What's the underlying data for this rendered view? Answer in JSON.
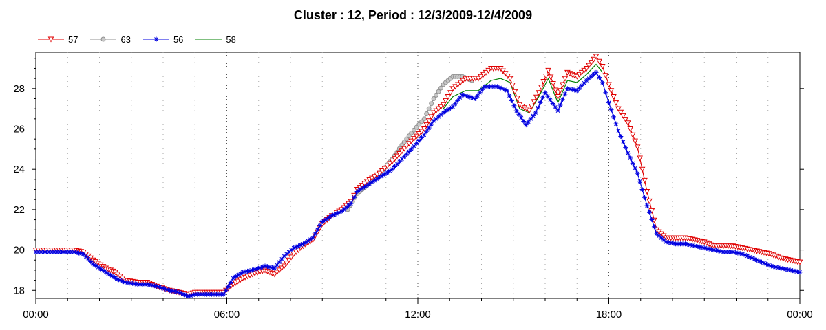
{
  "chart_data": {
    "type": "line",
    "title": "Cluster : 12, Period : 12/3/2009-12/4/2009",
    "xlabel": "",
    "ylabel": "",
    "xlim": [
      0,
      24
    ],
    "ylim": [
      17.6,
      29.8
    ],
    "x_ticks": [
      {
        "value": 0,
        "label": "00:00"
      },
      {
        "value": 6,
        "label": "06:00"
      },
      {
        "value": 12,
        "label": "12:00"
      },
      {
        "value": 18,
        "label": "18:00"
      },
      {
        "value": 24,
        "label": "00:00"
      }
    ],
    "y_ticks": [
      18,
      20,
      22,
      24,
      26,
      28
    ],
    "grid": true,
    "legend_position": "top-left",
    "series": [
      {
        "name": "57",
        "color": "#e00000",
        "marker": "triangle-down",
        "markerEvery": 2,
        "points": [
          [
            0,
            20.0
          ],
          [
            0.5,
            20.0
          ],
          [
            1.2,
            20.0
          ],
          [
            1.5,
            19.9
          ],
          [
            1.8,
            19.5
          ],
          [
            2.2,
            19.1
          ],
          [
            2.5,
            18.9
          ],
          [
            2.8,
            18.5
          ],
          [
            3.2,
            18.4
          ],
          [
            3.5,
            18.4
          ],
          [
            3.8,
            18.2
          ],
          [
            4.2,
            18.0
          ],
          [
            4.5,
            17.9
          ],
          [
            4.8,
            17.8
          ],
          [
            5.0,
            17.9
          ],
          [
            5.3,
            17.9
          ],
          [
            5.6,
            17.9
          ],
          [
            5.9,
            17.9
          ],
          [
            6.2,
            18.3
          ],
          [
            6.5,
            18.6
          ],
          [
            6.8,
            18.8
          ],
          [
            7.2,
            19.0
          ],
          [
            7.5,
            18.8
          ],
          [
            7.8,
            19.2
          ],
          [
            8.1,
            19.8
          ],
          [
            8.4,
            20.2
          ],
          [
            8.7,
            20.5
          ],
          [
            9.0,
            21.3
          ],
          [
            9.3,
            21.7
          ],
          [
            9.6,
            22.0
          ],
          [
            9.9,
            22.4
          ],
          [
            10.1,
            23.0
          ],
          [
            10.4,
            23.4
          ],
          [
            10.8,
            23.8
          ],
          [
            11.2,
            24.4
          ],
          [
            11.5,
            24.9
          ],
          [
            11.8,
            25.4
          ],
          [
            12.2,
            26.0
          ],
          [
            12.5,
            26.8
          ],
          [
            12.8,
            27.2
          ],
          [
            13.1,
            28.0
          ],
          [
            13.5,
            28.5
          ],
          [
            13.9,
            28.5
          ],
          [
            14.3,
            29.0
          ],
          [
            14.6,
            29.0
          ],
          [
            14.9,
            28.5
          ],
          [
            15.2,
            27.2
          ],
          [
            15.5,
            26.9
          ],
          [
            15.8,
            27.8
          ],
          [
            16.1,
            28.9
          ],
          [
            16.4,
            27.6
          ],
          [
            16.7,
            28.8
          ],
          [
            17.0,
            28.6
          ],
          [
            17.3,
            29.0
          ],
          [
            17.6,
            29.6
          ],
          [
            17.8,
            29.1
          ],
          [
            18.0,
            28.2
          ],
          [
            18.3,
            27.0
          ],
          [
            18.6,
            26.3
          ],
          [
            18.9,
            25.1
          ],
          [
            19.2,
            22.9
          ],
          [
            19.5,
            21.0
          ],
          [
            19.8,
            20.6
          ],
          [
            20.1,
            20.6
          ],
          [
            20.4,
            20.6
          ],
          [
            20.7,
            20.5
          ],
          [
            21.0,
            20.4
          ],
          [
            21.3,
            20.2
          ],
          [
            21.6,
            20.2
          ],
          [
            21.9,
            20.2
          ],
          [
            22.2,
            20.1
          ],
          [
            22.5,
            20.0
          ],
          [
            22.8,
            19.9
          ],
          [
            23.1,
            19.8
          ],
          [
            23.4,
            19.6
          ],
          [
            23.7,
            19.5
          ],
          [
            24.0,
            19.4
          ]
        ]
      },
      {
        "name": "63",
        "color": "#909090",
        "marker": "circle",
        "markerEvery": 2,
        "points": [
          [
            9.8,
            22.0
          ],
          [
            10.1,
            22.8
          ],
          [
            10.4,
            23.2
          ],
          [
            10.8,
            23.8
          ],
          [
            11.2,
            24.5
          ],
          [
            11.5,
            25.2
          ],
          [
            11.8,
            25.8
          ],
          [
            12.2,
            26.5
          ],
          [
            12.5,
            27.5
          ],
          [
            12.8,
            28.2
          ],
          [
            13.1,
            28.6
          ],
          [
            13.4,
            28.6
          ],
          [
            13.7,
            28.4
          ]
        ]
      },
      {
        "name": "56",
        "color": "#0000e0",
        "marker": "asterisk",
        "markerEvery": 2,
        "points": [
          [
            0,
            19.9
          ],
          [
            0.5,
            19.9
          ],
          [
            1.2,
            19.9
          ],
          [
            1.5,
            19.8
          ],
          [
            1.8,
            19.3
          ],
          [
            2.2,
            18.9
          ],
          [
            2.5,
            18.6
          ],
          [
            2.8,
            18.4
          ],
          [
            3.2,
            18.3
          ],
          [
            3.5,
            18.3
          ],
          [
            3.8,
            18.2
          ],
          [
            4.2,
            18.0
          ],
          [
            4.5,
            17.9
          ],
          [
            4.8,
            17.7
          ],
          [
            5.0,
            17.8
          ],
          [
            5.3,
            17.8
          ],
          [
            5.6,
            17.8
          ],
          [
            5.9,
            17.8
          ],
          [
            6.2,
            18.6
          ],
          [
            6.5,
            18.9
          ],
          [
            6.8,
            19.0
          ],
          [
            7.2,
            19.2
          ],
          [
            7.5,
            19.1
          ],
          [
            7.8,
            19.7
          ],
          [
            8.1,
            20.1
          ],
          [
            8.4,
            20.3
          ],
          [
            8.7,
            20.6
          ],
          [
            9.0,
            21.4
          ],
          [
            9.3,
            21.7
          ],
          [
            9.6,
            21.9
          ],
          [
            9.9,
            22.3
          ],
          [
            10.1,
            22.9
          ],
          [
            10.4,
            23.2
          ],
          [
            10.8,
            23.6
          ],
          [
            11.2,
            24.0
          ],
          [
            11.5,
            24.5
          ],
          [
            11.8,
            25.0
          ],
          [
            12.2,
            25.7
          ],
          [
            12.5,
            26.4
          ],
          [
            12.8,
            26.8
          ],
          [
            13.1,
            27.1
          ],
          [
            13.4,
            27.7
          ],
          [
            13.8,
            27.5
          ],
          [
            14.1,
            28.1
          ],
          [
            14.5,
            28.1
          ],
          [
            14.8,
            27.9
          ],
          [
            15.1,
            26.9
          ],
          [
            15.4,
            26.2
          ],
          [
            15.7,
            26.8
          ],
          [
            16.0,
            27.8
          ],
          [
            16.4,
            26.9
          ],
          [
            16.7,
            28.0
          ],
          [
            17.0,
            27.9
          ],
          [
            17.3,
            28.4
          ],
          [
            17.6,
            28.8
          ],
          [
            17.8,
            28.3
          ],
          [
            18.0,
            27.3
          ],
          [
            18.3,
            25.9
          ],
          [
            18.6,
            24.8
          ],
          [
            18.9,
            23.8
          ],
          [
            19.2,
            22.2
          ],
          [
            19.5,
            20.8
          ],
          [
            19.8,
            20.4
          ],
          [
            20.1,
            20.3
          ],
          [
            20.4,
            20.3
          ],
          [
            20.7,
            20.2
          ],
          [
            21.0,
            20.1
          ],
          [
            21.3,
            20.0
          ],
          [
            21.6,
            19.9
          ],
          [
            21.9,
            19.9
          ],
          [
            22.2,
            19.8
          ],
          [
            22.5,
            19.6
          ],
          [
            22.8,
            19.4
          ],
          [
            23.1,
            19.2
          ],
          [
            23.4,
            19.1
          ],
          [
            23.7,
            19.0
          ],
          [
            24.0,
            18.9
          ]
        ]
      },
      {
        "name": "58",
        "color": "#008000",
        "marker": "none",
        "markerEvery": 0,
        "points": [
          [
            12.8,
            27.0
          ],
          [
            13.1,
            27.6
          ],
          [
            13.5,
            27.9
          ],
          [
            13.9,
            27.9
          ],
          [
            14.3,
            28.4
          ],
          [
            14.6,
            28.5
          ],
          [
            14.9,
            28.3
          ],
          [
            15.2,
            27.0
          ],
          [
            15.5,
            26.8
          ],
          [
            15.8,
            27.6
          ],
          [
            16.1,
            28.5
          ],
          [
            16.4,
            27.3
          ],
          [
            16.7,
            28.4
          ],
          [
            17.0,
            28.3
          ],
          [
            17.3,
            28.7
          ],
          [
            17.6,
            29.2
          ],
          [
            17.8,
            28.8
          ]
        ]
      }
    ]
  }
}
